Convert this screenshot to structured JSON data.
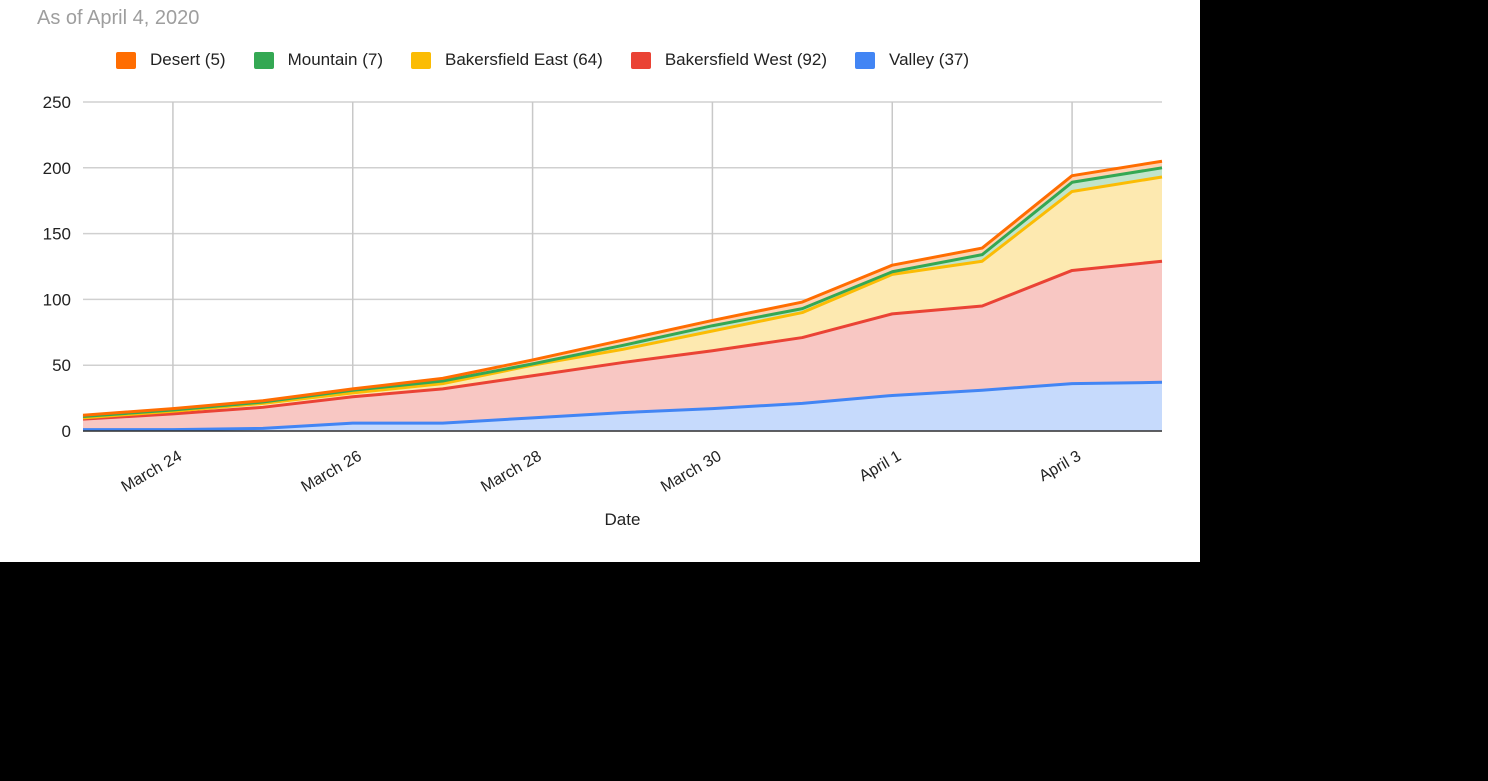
{
  "subtitle": "As of April 4, 2020",
  "chart_data": {
    "type": "area",
    "stacked": true,
    "title": "",
    "subtitle": "As of April 4, 2020",
    "xlabel": "Date",
    "ylabel": "",
    "ylim": [
      0,
      250
    ],
    "yticks": [
      0,
      50,
      100,
      150,
      200,
      250
    ],
    "grid": true,
    "legend_position": "top",
    "x": [
      "March 23",
      "March 24",
      "March 25",
      "March 26",
      "March 27",
      "March 28",
      "March 29",
      "March 30",
      "March 31",
      "April 1",
      "April 2",
      "April 3",
      "April 4"
    ],
    "xtick_labels": [
      "March 24",
      "March 26",
      "March 28",
      "March 30",
      "April 1",
      "April 3"
    ],
    "series": [
      {
        "name": "Valley (37)",
        "color": "#4285f4",
        "fill": "#c6dafc",
        "values": [
          1,
          1,
          2,
          6,
          6,
          10,
          14,
          17,
          21,
          27,
          31,
          36,
          37
        ]
      },
      {
        "name": "Bakersfield West (92)",
        "color": "#ea4335",
        "fill": "#f8c7c3",
        "values": [
          8,
          12,
          16,
          20,
          26,
          32,
          38,
          44,
          50,
          62,
          64,
          86,
          92
        ]
      },
      {
        "name": "Bakersfield East (64)",
        "color": "#fbbc04",
        "fill": "#fde9b0",
        "values": [
          1,
          2,
          3,
          3,
          4,
          8,
          10,
          15,
          19,
          30,
          34,
          60,
          64
        ]
      },
      {
        "name": "Mountain (7)",
        "color": "#34a853",
        "fill": "#c1e4cb",
        "values": [
          1,
          1,
          1,
          2,
          2,
          1,
          3,
          4,
          3,
          2,
          5,
          7,
          7
        ]
      },
      {
        "name": "Desert (5)",
        "color": "#ff6d01",
        "fill": "#ffd3b3",
        "values": [
          1,
          1,
          1,
          1,
          2,
          3,
          4,
          4,
          5,
          5,
          5,
          5,
          5
        ]
      }
    ],
    "legend_order": [
      "Desert (5)",
      "Mountain (7)",
      "Bakersfield East (64)",
      "Bakersfield West (92)",
      "Valley (37)"
    ]
  }
}
